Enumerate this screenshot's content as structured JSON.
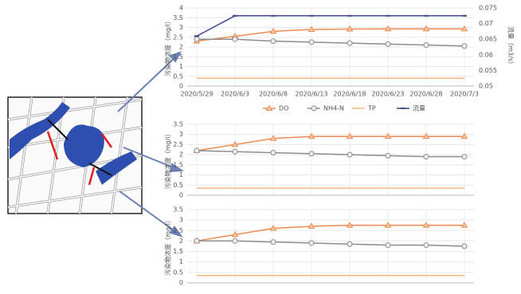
{
  "chart_data": [
    {
      "type": "line",
      "ylabel": "污染物浓度（mg/l）",
      "y2label": "流量（m3/s）",
      "categories": [
        "2020/5/29",
        "2020/6/3",
        "2020/6/8",
        "2020/6/13",
        "2020/6/18",
        "2020/6/23",
        "2020/6/28",
        "2020/7/3"
      ],
      "ylim": [
        0,
        4
      ],
      "yticks": [
        0,
        0.5,
        1,
        1.5,
        2,
        2.5,
        3,
        3.5,
        4
      ],
      "y2lim": [
        0.05,
        0.075
      ],
      "y2ticks": [
        0.05,
        0.055,
        0.06,
        0.065,
        0.07,
        0.075
      ],
      "grid": true,
      "legend": "bottom",
      "series": [
        {
          "name": "DO",
          "color": "#ee8a52",
          "marker": "triangle",
          "values": [
            2.3,
            2.55,
            2.8,
            2.9,
            2.92,
            2.93,
            2.93,
            2.93
          ]
        },
        {
          "name": "NH4-N",
          "color": "#8c8c8c",
          "marker": "circle",
          "values": [
            2.4,
            2.4,
            2.3,
            2.25,
            2.2,
            2.15,
            2.1,
            2.05
          ]
        },
        {
          "name": "TP",
          "color": "#f5b878",
          "marker": "none",
          "values": [
            0.4,
            0.4,
            0.4,
            0.4,
            0.4,
            0.4,
            0.4,
            0.4
          ]
        },
        {
          "name": "流量",
          "color": "#3b4a8a",
          "marker": "dash",
          "axis": "y2",
          "values": [
            0.066,
            0.0725,
            0.0725,
            0.0725,
            0.0725,
            0.0725,
            0.0725,
            0.0725
          ]
        }
      ]
    },
    {
      "type": "line",
      "ylabel": "污染物浓度（mg/l）",
      "categories": [
        null,
        null,
        null,
        null,
        null,
        null,
        null,
        null
      ],
      "ylim": [
        0,
        3.5
      ],
      "yticks": [
        0,
        0.5,
        1,
        1.5,
        2,
        2.5,
        3,
        3.5
      ],
      "grid": true,
      "series": [
        {
          "color": "#ee8a52",
          "marker": "triangle",
          "values": [
            2.2,
            2.5,
            2.8,
            2.9,
            2.9,
            2.9,
            2.9,
            2.9
          ]
        },
        {
          "color": "#8c8c8c",
          "marker": "circle",
          "values": [
            2.2,
            2.15,
            2.1,
            2.05,
            2.0,
            1.95,
            1.9,
            1.9
          ]
        },
        {
          "color": "#f5b878",
          "marker": "none",
          "values": [
            0.35,
            0.35,
            0.35,
            0.35,
            0.35,
            0.35,
            0.35,
            0.35
          ]
        }
      ]
    },
    {
      "type": "line",
      "ylabel": "污染物浓度（mg/l）",
      "categories": [
        null,
        null,
        null,
        null,
        null,
        null,
        null,
        null
      ],
      "ylim": [
        0,
        3.5
      ],
      "yticks": [
        0,
        0.5,
        1,
        1.5,
        2,
        2.5,
        3,
        3.5
      ],
      "grid": true,
      "series": [
        {
          "color": "#ee8a52",
          "marker": "triangle",
          "values": [
            2.0,
            2.3,
            2.6,
            2.7,
            2.75,
            2.75,
            2.75,
            2.75
          ]
        },
        {
          "color": "#8c8c8c",
          "marker": "circle",
          "values": [
            2.0,
            2.0,
            1.95,
            1.9,
            1.85,
            1.8,
            1.8,
            1.75
          ]
        },
        {
          "color": "#f5b878",
          "marker": "none",
          "values": [
            0.35,
            0.35,
            0.35,
            0.35,
            0.35,
            0.35,
            0.35,
            0.35
          ]
        }
      ]
    }
  ]
}
